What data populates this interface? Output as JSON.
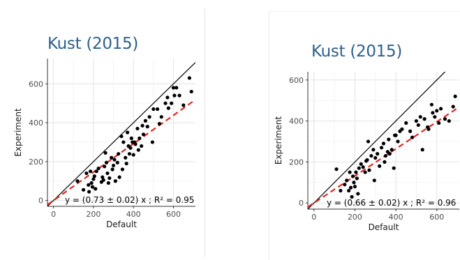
{
  "colors": {
    "title": "#2f5f8a",
    "grid": "#e3e3e3",
    "axis": "#333333",
    "point": "#000000",
    "identity_line": "#000000",
    "fit_line": "#e32525"
  },
  "chart_data": [
    {
      "type": "scatter",
      "title": "Kust (2015)",
      "xlabel": "Default",
      "ylabel": "Experiment",
      "xlim": [
        -30,
        710
      ],
      "ylim": [
        -30,
        730
      ],
      "xticks": [
        0,
        200,
        400,
        600
      ],
      "yticks": [
        0,
        200,
        400,
        600
      ],
      "grid": true,
      "annotation": "y = (0.73 ± 0.02) x ; R² = 0.95",
      "fit_slope": 0.73,
      "identity_line": true,
      "points": [
        [
          120,
          100
        ],
        [
          150,
          55
        ],
        [
          165,
          140
        ],
        [
          175,
          80
        ],
        [
          178,
          45
        ],
        [
          185,
          150
        ],
        [
          190,
          90
        ],
        [
          195,
          70
        ],
        [
          200,
          110
        ],
        [
          205,
          125
        ],
        [
          210,
          60
        ],
        [
          215,
          150
        ],
        [
          225,
          165
        ],
        [
          240,
          95
        ],
        [
          245,
          120
        ],
        [
          250,
          105
        ],
        [
          255,
          175
        ],
        [
          260,
          245
        ],
        [
          265,
          195
        ],
        [
          270,
          140
        ],
        [
          275,
          90
        ],
        [
          280,
          115
        ],
        [
          290,
          220
        ],
        [
          295,
          160
        ],
        [
          300,
          180
        ],
        [
          305,
          210
        ],
        [
          310,
          100
        ],
        [
          320,
          195
        ],
        [
          325,
          240
        ],
        [
          330,
          120
        ],
        [
          340,
          330
        ],
        [
          345,
          160
        ],
        [
          350,
          300
        ],
        [
          360,
          220
        ],
        [
          365,
          190
        ],
        [
          370,
          350
        ],
        [
          375,
          280
        ],
        [
          380,
          240
        ],
        [
          385,
          270
        ],
        [
          390,
          320
        ],
        [
          395,
          300
        ],
        [
          400,
          235
        ],
        [
          405,
          300
        ],
        [
          410,
          290
        ],
        [
          420,
          370
        ],
        [
          425,
          260
        ],
        [
          430,
          320
        ],
        [
          440,
          280
        ],
        [
          445,
          385
        ],
        [
          450,
          340
        ],
        [
          460,
          410
        ],
        [
          470,
          380
        ],
        [
          480,
          430
        ],
        [
          495,
          300
        ],
        [
          500,
          470
        ],
        [
          520,
          470
        ],
        [
          530,
          395
        ],
        [
          540,
          430
        ],
        [
          560,
          500
        ],
        [
          570,
          530
        ],
        [
          575,
          475
        ],
        [
          590,
          500
        ],
        [
          600,
          580
        ],
        [
          605,
          540
        ],
        [
          615,
          580
        ],
        [
          630,
          540
        ],
        [
          650,
          490
        ],
        [
          680,
          630
        ],
        [
          690,
          560
        ]
      ]
    },
    {
      "type": "scatter",
      "title": "Kust (2015)",
      "xlabel": "Default",
      "ylabel": "Experiment",
      "xlim": [
        -30,
        710
      ],
      "ylim": [
        -30,
        640
      ],
      "xticks": [
        0,
        200,
        400,
        600
      ],
      "yticks": [
        0,
        200,
        400,
        600
      ],
      "grid": true,
      "annotation": "y = (0.66 ± 0.02) x ; R² = 0.96",
      "fit_slope": 0.66,
      "identity_line": true,
      "points": [
        [
          110,
          165
        ],
        [
          130,
          60
        ],
        [
          150,
          90
        ],
        [
          160,
          110
        ],
        [
          170,
          60
        ],
        [
          175,
          150
        ],
        [
          180,
          75
        ],
        [
          185,
          30
        ],
        [
          190,
          130
        ],
        [
          195,
          100
        ],
        [
          200,
          80
        ],
        [
          205,
          150
        ],
        [
          210,
          120
        ],
        [
          215,
          45
        ],
        [
          220,
          170
        ],
        [
          230,
          190
        ],
        [
          240,
          175
        ],
        [
          250,
          150
        ],
        [
          255,
          205
        ],
        [
          260,
          210
        ],
        [
          265,
          300
        ],
        [
          270,
          160
        ],
        [
          280,
          230
        ],
        [
          290,
          260
        ],
        [
          295,
          110
        ],
        [
          300,
          220
        ],
        [
          310,
          240
        ],
        [
          320,
          180
        ],
        [
          330,
          270
        ],
        [
          340,
          290
        ],
        [
          345,
          200
        ],
        [
          350,
          230
        ],
        [
          360,
          250
        ],
        [
          365,
          310
        ],
        [
          370,
          240
        ],
        [
          380,
          260
        ],
        [
          390,
          170
        ],
        [
          395,
          330
        ],
        [
          400,
          330
        ],
        [
          410,
          300
        ],
        [
          420,
          350
        ],
        [
          430,
          360
        ],
        [
          450,
          390
        ],
        [
          470,
          350
        ],
        [
          480,
          320
        ],
        [
          500,
          400
        ],
        [
          510,
          380
        ],
        [
          520,
          420
        ],
        [
          530,
          260
        ],
        [
          540,
          410
        ],
        [
          555,
          370
        ],
        [
          560,
          360
        ],
        [
          575,
          480
        ],
        [
          580,
          440
        ],
        [
          590,
          420
        ],
        [
          600,
          450
        ],
        [
          610,
          390
        ],
        [
          620,
          460
        ],
        [
          640,
          410
        ],
        [
          660,
          400
        ],
        [
          680,
          470
        ],
        [
          690,
          520
        ]
      ]
    }
  ]
}
